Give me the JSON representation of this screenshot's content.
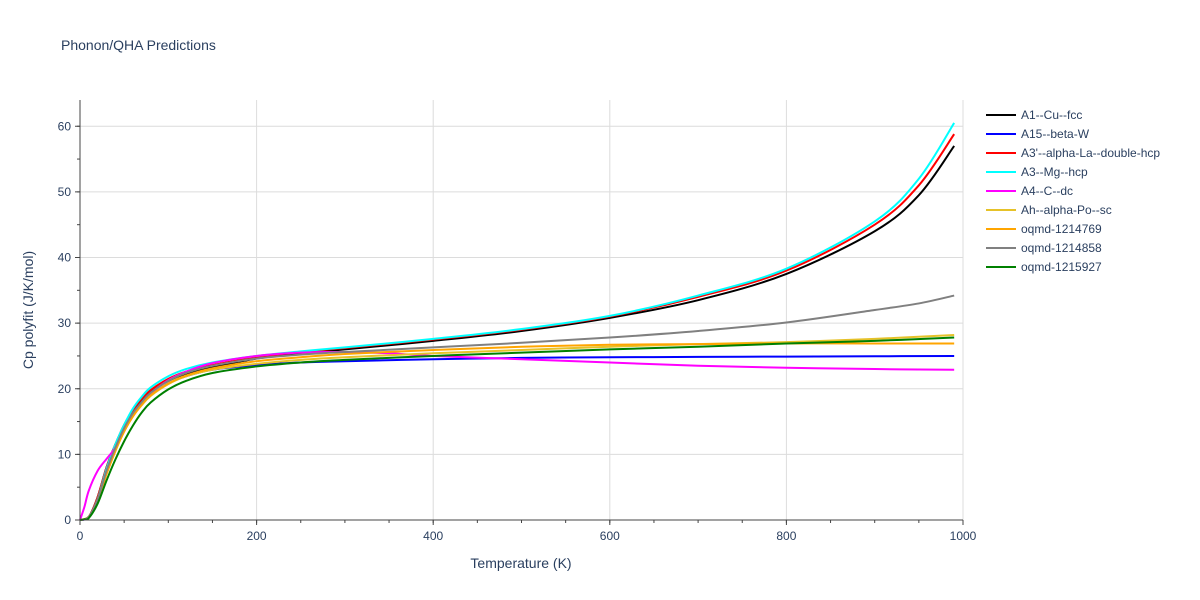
{
  "chart_data": {
    "type": "line",
    "title": "Phonon/QHA Predictions",
    "xlabel": "Temperature (K)",
    "ylabel": "Cp polyfit (J/K/mol)",
    "xlim": [
      0,
      1000
    ],
    "ylim": [
      0,
      64
    ],
    "xticks": [
      0,
      200,
      400,
      600,
      800,
      1000
    ],
    "yticks": [
      0,
      10,
      20,
      30,
      40,
      50,
      60
    ],
    "grid": true,
    "legend_position": "top-right",
    "series": [
      {
        "name": "A1--Cu--fcc",
        "color": "#000000",
        "x": [
          0,
          10,
          20,
          30,
          40,
          50,
          60,
          70,
          80,
          100,
          120,
          150,
          200,
          250,
          300,
          400,
          500,
          600,
          700,
          800,
          900,
          950,
          990
        ],
        "y": [
          0,
          0.5,
          3.5,
          8,
          11.5,
          14.3,
          16.5,
          18.2,
          19.5,
          21.2,
          22.3,
          23.3,
          24.6,
          25.4,
          26,
          27.3,
          28.8,
          30.8,
          33.5,
          37.5,
          44,
          49.5,
          57
        ]
      },
      {
        "name": "A15--beta-W",
        "color": "#0000ff",
        "x": [
          0,
          10,
          20,
          30,
          40,
          50,
          60,
          70,
          80,
          100,
          120,
          150,
          200,
          250,
          300,
          400,
          500,
          600,
          700,
          800,
          900,
          990
        ],
        "y": [
          0,
          0.4,
          3,
          7.5,
          11,
          13.8,
          16,
          17.8,
          19,
          20.8,
          21.9,
          22.9,
          23.6,
          24,
          24.2,
          24.5,
          24.7,
          24.8,
          24.85,
          24.9,
          24.95,
          25
        ]
      },
      {
        "name": "A3'--alpha-La--double-hcp",
        "color": "#ff0000",
        "x": [
          0,
          10,
          20,
          30,
          40,
          50,
          60,
          70,
          80,
          100,
          120,
          150,
          200,
          250,
          300,
          400,
          500,
          600,
          700,
          800,
          900,
          950,
          990
        ],
        "y": [
          0,
          0.5,
          3.5,
          8,
          11.5,
          14.5,
          16.8,
          18.5,
          19.8,
          21.5,
          22.6,
          23.6,
          24.8,
          25.6,
          26.2,
          27.5,
          29,
          31,
          34,
          38,
          45,
          51,
          58.8
        ]
      },
      {
        "name": "A3--Mg--hcp",
        "color": "#00ffff",
        "x": [
          0,
          10,
          20,
          30,
          40,
          50,
          60,
          70,
          80,
          100,
          120,
          150,
          200,
          250,
          300,
          400,
          500,
          600,
          700,
          800,
          900,
          950,
          990
        ],
        "y": [
          0,
          0.5,
          3.2,
          7.8,
          11.5,
          14.5,
          17,
          18.8,
          20.2,
          21.9,
          23,
          24,
          25,
          25.7,
          26.3,
          27.6,
          29.1,
          31.1,
          34.2,
          38.3,
          45.5,
          52,
          60.5
        ]
      },
      {
        "name": "A4--C--dc",
        "color": "#ff00ff",
        "x": [
          0,
          5,
          10,
          20,
          30,
          40,
          50,
          60,
          70,
          80,
          100,
          120,
          150,
          200,
          250,
          300,
          350,
          400,
          500,
          600,
          700,
          800,
          900,
          990
        ],
        "y": [
          0,
          2,
          4.5,
          7.5,
          9.3,
          11,
          13.5,
          16,
          17.8,
          19.3,
          21.3,
          22.6,
          23.9,
          25,
          25.5,
          25.6,
          25.4,
          25,
          24.5,
          24,
          23.5,
          23.2,
          23,
          22.9
        ]
      },
      {
        "name": "Ah--alpha-Po--sc",
        "color": "#e6c229",
        "x": [
          0,
          10,
          20,
          30,
          40,
          50,
          60,
          70,
          80,
          100,
          120,
          150,
          200,
          250,
          300,
          400,
          500,
          600,
          700,
          800,
          900,
          990
        ],
        "y": [
          0,
          0.5,
          3,
          7,
          10.5,
          13.5,
          15.8,
          17.5,
          18.9,
          20.7,
          21.9,
          22.9,
          23.8,
          24.4,
          24.8,
          25.4,
          25.9,
          26.4,
          26.8,
          27.1,
          27.6,
          28.2
        ]
      },
      {
        "name": "oqmd-1214769",
        "color": "#ffa500",
        "x": [
          0,
          10,
          20,
          30,
          40,
          50,
          60,
          70,
          80,
          100,
          120,
          150,
          200,
          250,
          300,
          400,
          500,
          600,
          700,
          800,
          900,
          990
        ],
        "y": [
          0,
          0.5,
          3,
          7,
          10.5,
          13.5,
          15.8,
          17.6,
          19,
          20.8,
          22,
          23.1,
          24.2,
          24.8,
          25.3,
          25.9,
          26.4,
          26.7,
          26.8,
          26.9,
          26.9,
          26.9
        ]
      },
      {
        "name": "oqmd-1214858",
        "color": "#808080",
        "x": [
          0,
          10,
          20,
          30,
          40,
          50,
          60,
          70,
          80,
          100,
          120,
          150,
          200,
          250,
          300,
          400,
          500,
          600,
          700,
          800,
          900,
          950,
          990
        ],
        "y": [
          0,
          0.5,
          3.2,
          7.5,
          11,
          14,
          16.3,
          18,
          19.4,
          21.2,
          22.4,
          23.5,
          24.6,
          25.2,
          25.6,
          26.3,
          27,
          27.8,
          28.8,
          30.1,
          32,
          33,
          34.2
        ]
      },
      {
        "name": "oqmd-1215927",
        "color": "#008000",
        "x": [
          0,
          5,
          10,
          20,
          30,
          40,
          50,
          60,
          70,
          80,
          100,
          120,
          150,
          200,
          250,
          300,
          400,
          500,
          600,
          700,
          800,
          900,
          990
        ],
        "y": [
          0,
          0.1,
          0.3,
          2.5,
          6,
          9.2,
          12,
          14.4,
          16.4,
          17.9,
          19.9,
          21.2,
          22.4,
          23.4,
          24,
          24.4,
          25,
          25.5,
          26,
          26.4,
          26.9,
          27.3,
          27.8
        ]
      }
    ]
  }
}
